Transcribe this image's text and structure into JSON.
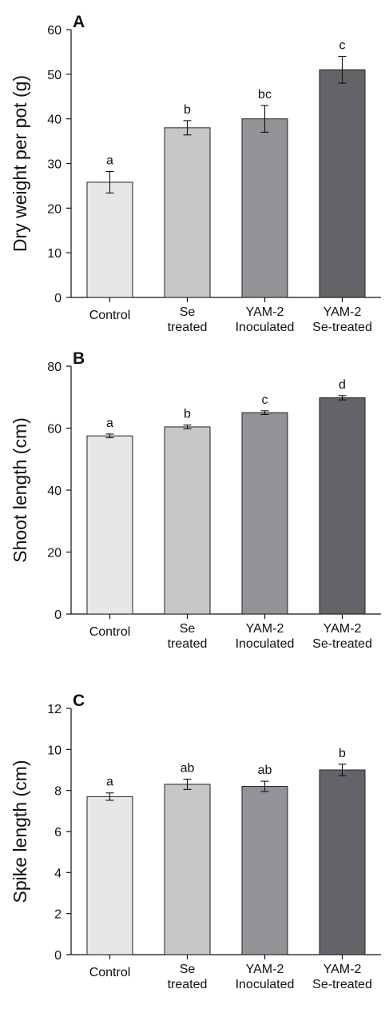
{
  "chart_data": [
    {
      "panel_label": "A",
      "type": "bar",
      "categories": [
        "Control",
        "Se\ntreated",
        "YAM-2\nInoculated",
        "YAM-2\nSe-treated"
      ],
      "values": [
        25.8,
        38.0,
        40.0,
        51.0
      ],
      "errors": [
        2.4,
        1.6,
        3.0,
        3.0
      ],
      "letters": [
        "a",
        "b",
        "bc",
        "c"
      ],
      "ylabel": "Dry weight per pot (g)",
      "ylim": [
        0,
        60
      ],
      "yticks": [
        0,
        10,
        20,
        30,
        40,
        50,
        60
      ],
      "grid": false
    },
    {
      "panel_label": "B",
      "type": "bar",
      "categories": [
        "Control",
        "Se\ntreated",
        "YAM-2\nInoculated",
        "YAM-2\nSe-treated"
      ],
      "values": [
        57.5,
        60.4,
        65.0,
        69.8
      ],
      "errors": [
        0.6,
        0.6,
        0.6,
        0.7
      ],
      "letters": [
        "a",
        "b",
        "c",
        "d"
      ],
      "ylabel": "Shoot length (cm)",
      "ylim": [
        0,
        80
      ],
      "yticks": [
        0,
        20,
        40,
        60,
        80
      ],
      "grid": false
    },
    {
      "panel_label": "C",
      "type": "bar",
      "categories": [
        "Control",
        "Se\ntreated",
        "YAM-2\nInoculated",
        "YAM-2\nSe-treated"
      ],
      "values": [
        7.7,
        8.3,
        8.2,
        9.0
      ],
      "errors": [
        0.18,
        0.25,
        0.25,
        0.28
      ],
      "letters": [
        "a",
        "ab",
        "ab",
        "b"
      ],
      "ylabel": "Spike length (cm)",
      "ylim": [
        0,
        12
      ],
      "yticks": [
        0,
        2,
        4,
        6,
        8,
        10,
        12
      ],
      "grid": false
    }
  ],
  "colors": {
    "bars": [
      "#e6e7e9",
      "#c6c7c9",
      "#929396",
      "#636468"
    ],
    "axis": "#111111",
    "bar_stroke": "#222222"
  }
}
